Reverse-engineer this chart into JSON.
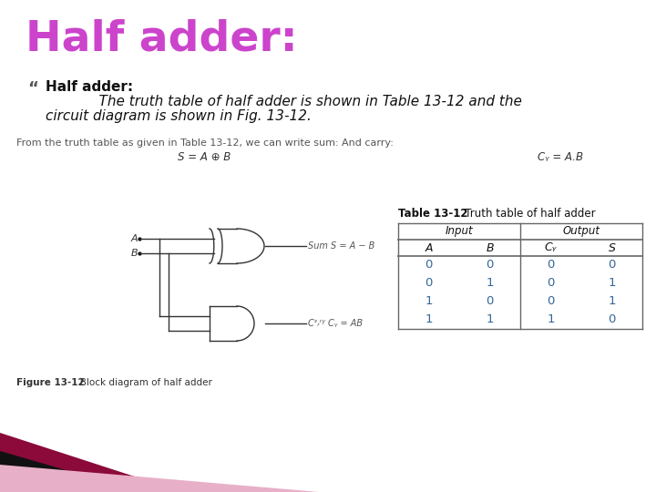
{
  "title": "Half adder:",
  "title_color": "#cc44cc",
  "title_fontsize": 34,
  "title_weight": "bold",
  "subtitle_head": "Half adder:",
  "subtitle_text_line1": "            The truth table of half adder is shown in Table 13-12 and the",
  "subtitle_text_line2": "circuit diagram is shown in Fig. 13-12.",
  "body_line1": "From the truth table as given in Table 13-12, we can write sum:",
  "body_line1_right": "And carry:",
  "body_formula_sum": "S = A ⊕ B",
  "body_formula_carry": "Cᵧ = A.B",
  "fig_caption_bold": "Figure 13-12",
  "fig_caption_rest": "   Block diagram of half adder",
  "table_title_bold": "Table 13-12",
  "table_title_rest": "   Truth table of half adder",
  "table_data": [
    [
      0,
      0,
      0,
      0
    ],
    [
      0,
      1,
      0,
      1
    ],
    [
      1,
      0,
      0,
      1
    ],
    [
      1,
      1,
      1,
      0
    ]
  ],
  "bg_color": "#ffffff",
  "table_line_color": "#666666",
  "data_color": "#336699",
  "body_fontsize": 8,
  "subtitle_fontsize": 11,
  "table_fontsize": 9
}
